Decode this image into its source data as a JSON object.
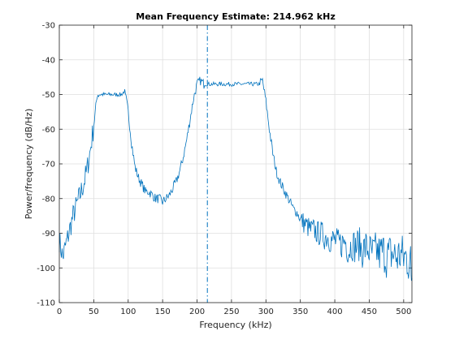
{
  "chart_data": {
    "type": "line",
    "title": "Mean Frequency Estimate: 214.962 kHz",
    "xlabel": "Frequency (kHz)",
    "ylabel": "Power/frequency (dB/Hz)",
    "xlim": [
      0,
      512
    ],
    "ylim": [
      -110,
      -30
    ],
    "xticks": [
      0,
      50,
      100,
      150,
      200,
      250,
      300,
      350,
      400,
      450,
      500
    ],
    "yticks": [
      -110,
      -100,
      -90,
      -80,
      -70,
      -60,
      -50,
      -40,
      -30
    ],
    "grid": true,
    "line_color": "#0072bd",
    "mean_frequency": 214.962,
    "series": [
      {
        "x": [
          0,
          5,
          10,
          15,
          20,
          25,
          30,
          35,
          40,
          45,
          50,
          55,
          60,
          65,
          70,
          75,
          80,
          85,
          90,
          95,
          100,
          105,
          110,
          115,
          120,
          125,
          130,
          135,
          140,
          145,
          150,
          155,
          160,
          165,
          170,
          175,
          180,
          185,
          190,
          195,
          200,
          205,
          210,
          215,
          220,
          225,
          230,
          235,
          240,
          245,
          250,
          255,
          260,
          265,
          270,
          275,
          280,
          285,
          290,
          295,
          300,
          305,
          310,
          315,
          320,
          325,
          330,
          335,
          340,
          345,
          350,
          355,
          360,
          365,
          370,
          375,
          380,
          385,
          390,
          395,
          400,
          405,
          410,
          415,
          420,
          425,
          430,
          435,
          440,
          445,
          450,
          455,
          460,
          465,
          470,
          475,
          480,
          485,
          490,
          495,
          500,
          505,
          510,
          512
        ],
        "values": [
          -92,
          -97,
          -93,
          -89,
          -85,
          -82,
          -79,
          -76,
          -72,
          -66,
          -59,
          -50,
          -50,
          -50,
          -50,
          -50,
          -50,
          -50,
          -50,
          -49,
          -55,
          -64,
          -71,
          -74,
          -76,
          -78,
          -78,
          -79,
          -80,
          -80,
          -81,
          -80,
          -79,
          -77,
          -75,
          -72,
          -68,
          -63,
          -57,
          -51,
          -47,
          -46,
          -47,
          -47,
          -47,
          -47,
          -47,
          -47,
          -47,
          -47,
          -47,
          -47,
          -47,
          -47,
          -47,
          -47,
          -47,
          -47,
          -47,
          -46,
          -52,
          -60,
          -67,
          -72,
          -75,
          -77,
          -79,
          -81,
          -83,
          -84,
          -86,
          -87,
          -88,
          -89,
          -89,
          -90,
          -90,
          -91,
          -91,
          -92,
          -92,
          -93,
          -93,
          -92,
          -95,
          -93,
          -94,
          -93,
          -95,
          -94,
          -95,
          -96,
          -95,
          -96,
          -95,
          -97,
          -96,
          -96,
          -97,
          -96,
          -97,
          -97,
          -99,
          -103
        ]
      }
    ]
  }
}
